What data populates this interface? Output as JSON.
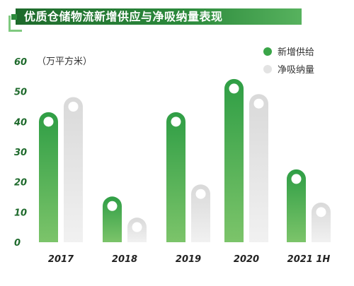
{
  "title": "优质仓储物流新增供应与净吸纳量表现",
  "chart_data": {
    "type": "bar",
    "unit": "（万平方米）",
    "categories": [
      "2017",
      "2018",
      "2019",
      "2020",
      "2021 1H"
    ],
    "series": [
      {
        "name": "新增供给",
        "values": [
          40,
          12,
          40,
          51,
          21
        ],
        "color": "#3aa548"
      },
      {
        "name": "净吸纳量",
        "values": [
          45,
          5,
          16,
          46,
          10
        ],
        "color": "#dcdcdc"
      }
    ],
    "yticks": [
      0,
      10,
      20,
      30,
      40,
      50,
      60
    ],
    "ylim": [
      0,
      60
    ],
    "grid": false,
    "legend_position": "top-right"
  }
}
